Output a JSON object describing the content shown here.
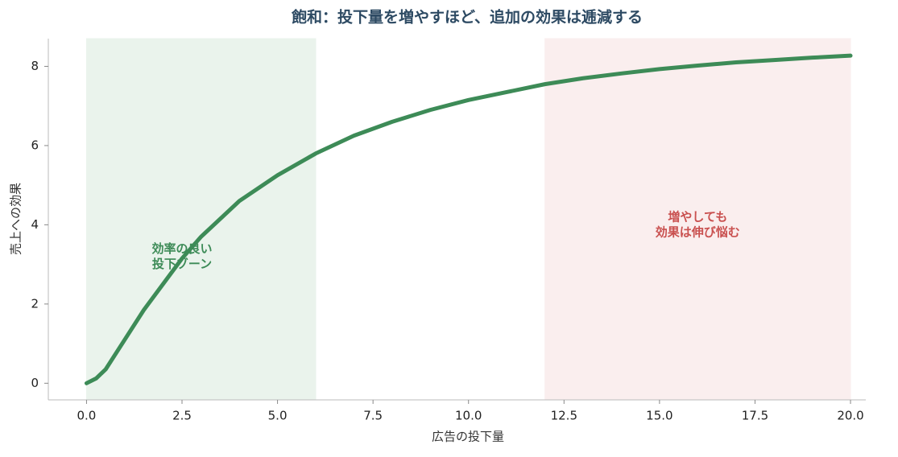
{
  "chart_data": {
    "type": "line",
    "title": "飽和：投下量を増やすほど、追加の効果は逓減する",
    "xlabel": "広告の投下量",
    "ylabel": "売上への効果",
    "x": [
      0,
      0.25,
      0.5,
      1,
      1.5,
      2,
      2.5,
      3,
      4,
      5,
      6,
      7,
      8,
      9,
      10,
      11,
      12,
      13,
      14,
      15,
      16,
      17,
      18,
      19,
      20
    ],
    "values": [
      0,
      0.12,
      0.35,
      1.1,
      1.85,
      2.5,
      3.15,
      3.7,
      4.6,
      5.25,
      5.8,
      6.25,
      6.6,
      6.9,
      7.15,
      7.35,
      7.55,
      7.7,
      7.82,
      7.93,
      8.02,
      8.1,
      8.16,
      8.22,
      8.27
    ],
    "color": "#3d8b57",
    "xlim": [
      -1,
      20.4
    ],
    "ylim": [
      -0.42,
      8.7
    ],
    "xticks": [
      {
        "value": 0,
        "label": "0.0"
      },
      2.5,
      {
        "value": 5,
        "label": "5.0"
      },
      7.5,
      {
        "value": 10,
        "label": "10.0"
      },
      12.5,
      {
        "value": 15,
        "label": "15.0"
      },
      17.5,
      {
        "value": 20,
        "label": "20.0"
      }
    ],
    "yticks": [
      0,
      2,
      4,
      6,
      8
    ],
    "regions": [
      {
        "xlim": [
          0,
          6
        ],
        "color": "#eaf3ec"
      },
      {
        "xlim": [
          12,
          20
        ],
        "color": "#faeeee"
      }
    ],
    "annotations": [
      {
        "lines": [
          "効率の良い",
          "投下ゾーン"
        ],
        "x": 2.5,
        "y": 3.2,
        "color": "#3d8b57"
      },
      {
        "lines": [
          "増やしても",
          "効果は伸び悩む"
        ],
        "x": 16,
        "y": 4.0,
        "color": "#c9504f"
      }
    ]
  }
}
